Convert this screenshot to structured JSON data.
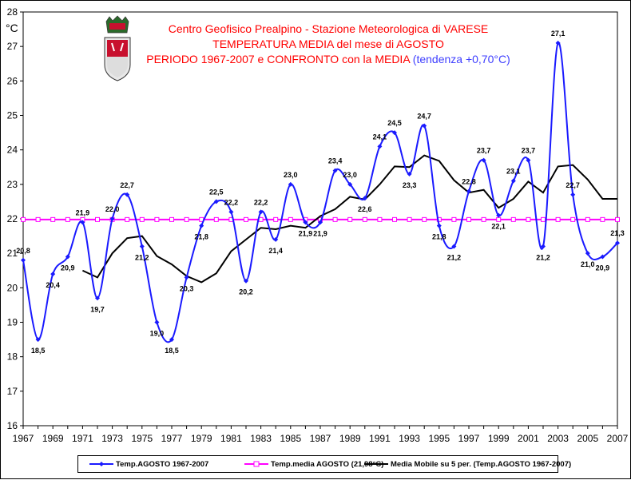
{
  "title": {
    "line1": "Centro Geofisico Prealpino - Stazione Meteorologica di VARESE",
    "line2": "TEMPERATURA MEDIA del mese di AGOSTO",
    "line3": "PERIODO 1967-2007 e CONFRONTO con la MEDIA",
    "trend": "(tendenza +0,70°C)"
  },
  "unit_label": "°C",
  "emblem_icon": "coat-of-arms-icon",
  "colors": {
    "background": "#ffffff",
    "plot_area": "#ffffff",
    "monthly_series": "#1a1aff",
    "mean_line": "#ff00ff",
    "moving_average": "#000000",
    "title": "#ff0000",
    "trend_text": "#4040ff"
  },
  "chart_data": {
    "type": "line",
    "x": [
      1967,
      1968,
      1969,
      1970,
      1971,
      1972,
      1973,
      1974,
      1975,
      1976,
      1977,
      1978,
      1979,
      1980,
      1981,
      1982,
      1983,
      1984,
      1985,
      1986,
      1987,
      1988,
      1989,
      1990,
      1991,
      1992,
      1993,
      1994,
      1995,
      1996,
      1997,
      1998,
      1999,
      2000,
      2001,
      2002,
      2003,
      2004,
      2005,
      2006,
      2007
    ],
    "xticks": [
      "1967",
      "1969",
      "1971",
      "1973",
      "1975",
      "1977",
      "1979",
      "1981",
      "1983",
      "1985",
      "1987",
      "1989",
      "1991",
      "1993",
      "1995",
      "1997",
      "1999",
      "2001",
      "2003",
      "2005",
      "2007"
    ],
    "yticks": [
      "16",
      "17",
      "18",
      "19",
      "20",
      "21",
      "22",
      "23",
      "24",
      "25",
      "26",
      "27",
      "28"
    ],
    "ylim": [
      16,
      28
    ],
    "xlim": [
      1967,
      2007
    ],
    "grid": false,
    "legend_position": "bottom",
    "series": [
      {
        "name": "Temp.AGOSTO 1967-2007",
        "style": "smooth-line-with-markers",
        "values": [
          20.8,
          18.5,
          20.4,
          20.9,
          21.9,
          19.7,
          22.0,
          22.7,
          21.2,
          19.0,
          18.5,
          20.3,
          21.8,
          22.5,
          22.2,
          20.2,
          22.2,
          21.4,
          23.0,
          21.9,
          21.9,
          23.4,
          23.0,
          22.6,
          24.1,
          24.5,
          23.3,
          24.7,
          21.8,
          21.2,
          22.8,
          23.7,
          22.1,
          23.1,
          23.7,
          21.2,
          27.1,
          22.7,
          21.0,
          20.9,
          21.3
        ]
      },
      {
        "name": "Temp.media AGOSTO (21,98°C)",
        "style": "line-with-markers",
        "values": [
          21.98,
          21.98,
          21.98,
          21.98,
          21.98,
          21.98,
          21.98,
          21.98,
          21.98,
          21.98,
          21.98,
          21.98,
          21.98,
          21.98,
          21.98,
          21.98,
          21.98,
          21.98,
          21.98,
          21.98,
          21.98,
          21.98,
          21.98,
          21.98,
          21.98,
          21.98,
          21.98,
          21.98,
          21.98,
          21.98,
          21.98,
          21.98,
          21.98,
          21.98,
          21.98,
          21.98,
          21.98,
          21.98,
          21.98,
          21.98,
          21.98
        ]
      },
      {
        "name": "Media Mobile su 5 per. (Temp.AGOSTO 1967-2007)",
        "style": "line",
        "values": [
          null,
          null,
          null,
          null,
          20.5,
          20.3,
          21.0,
          21.44,
          21.5,
          20.92,
          20.68,
          20.34,
          20.16,
          20.42,
          21.06,
          21.4,
          21.74,
          21.7,
          21.8,
          21.74,
          22.08,
          22.28,
          22.64,
          22.56,
          23.0,
          23.52,
          23.5,
          23.84,
          23.68,
          23.12,
          22.76,
          22.84,
          22.32,
          22.58,
          23.08,
          22.76,
          23.52,
          23.56,
          23.14,
          22.58,
          22.58
        ]
      }
    ],
    "data_labels": [
      {
        "year": 1967,
        "text": "20,8"
      },
      {
        "year": 1968,
        "text": "18,5"
      },
      {
        "year": 1969,
        "text": "20,4"
      },
      {
        "year": 1970,
        "text": "20,9"
      },
      {
        "year": 1971,
        "text": "21,9"
      },
      {
        "year": 1972,
        "text": "19,7"
      },
      {
        "year": 1973,
        "text": "22,0"
      },
      {
        "year": 1974,
        "text": "22,7"
      },
      {
        "year": 1975,
        "text": "21,2"
      },
      {
        "year": 1976,
        "text": "19,0"
      },
      {
        "year": 1977,
        "text": "18,5"
      },
      {
        "year": 1978,
        "text": "20,3"
      },
      {
        "year": 1979,
        "text": "21,8"
      },
      {
        "year": 1980,
        "text": "22,5"
      },
      {
        "year": 1981,
        "text": "22,2"
      },
      {
        "year": 1982,
        "text": "20,2"
      },
      {
        "year": 1983,
        "text": "22,2"
      },
      {
        "year": 1984,
        "text": "21,4"
      },
      {
        "year": 1985,
        "text": "23,0"
      },
      {
        "year": 1986,
        "text": "21,9"
      },
      {
        "year": 1987,
        "text": "21,9"
      },
      {
        "year": 1988,
        "text": "23,4"
      },
      {
        "year": 1989,
        "text": "23,0"
      },
      {
        "year": 1990,
        "text": "22,6"
      },
      {
        "year": 1991,
        "text": "24,1"
      },
      {
        "year": 1992,
        "text": "24,5"
      },
      {
        "year": 1993,
        "text": "23,3"
      },
      {
        "year": 1994,
        "text": "24,7"
      },
      {
        "year": 1995,
        "text": "21,8"
      },
      {
        "year": 1996,
        "text": "21,2"
      },
      {
        "year": 1997,
        "text": "22,8"
      },
      {
        "year": 1998,
        "text": "23,7"
      },
      {
        "year": 1999,
        "text": "22,1"
      },
      {
        "year": 2000,
        "text": "23,1"
      },
      {
        "year": 2001,
        "text": "23,7"
      },
      {
        "year": 2002,
        "text": "21,2"
      },
      {
        "year": 2003,
        "text": "27,1"
      },
      {
        "year": 2004,
        "text": "22,7"
      },
      {
        "year": 2005,
        "text": "21,0"
      },
      {
        "year": 2006,
        "text": "20,9"
      },
      {
        "year": 2007,
        "text": "21,3"
      }
    ]
  }
}
